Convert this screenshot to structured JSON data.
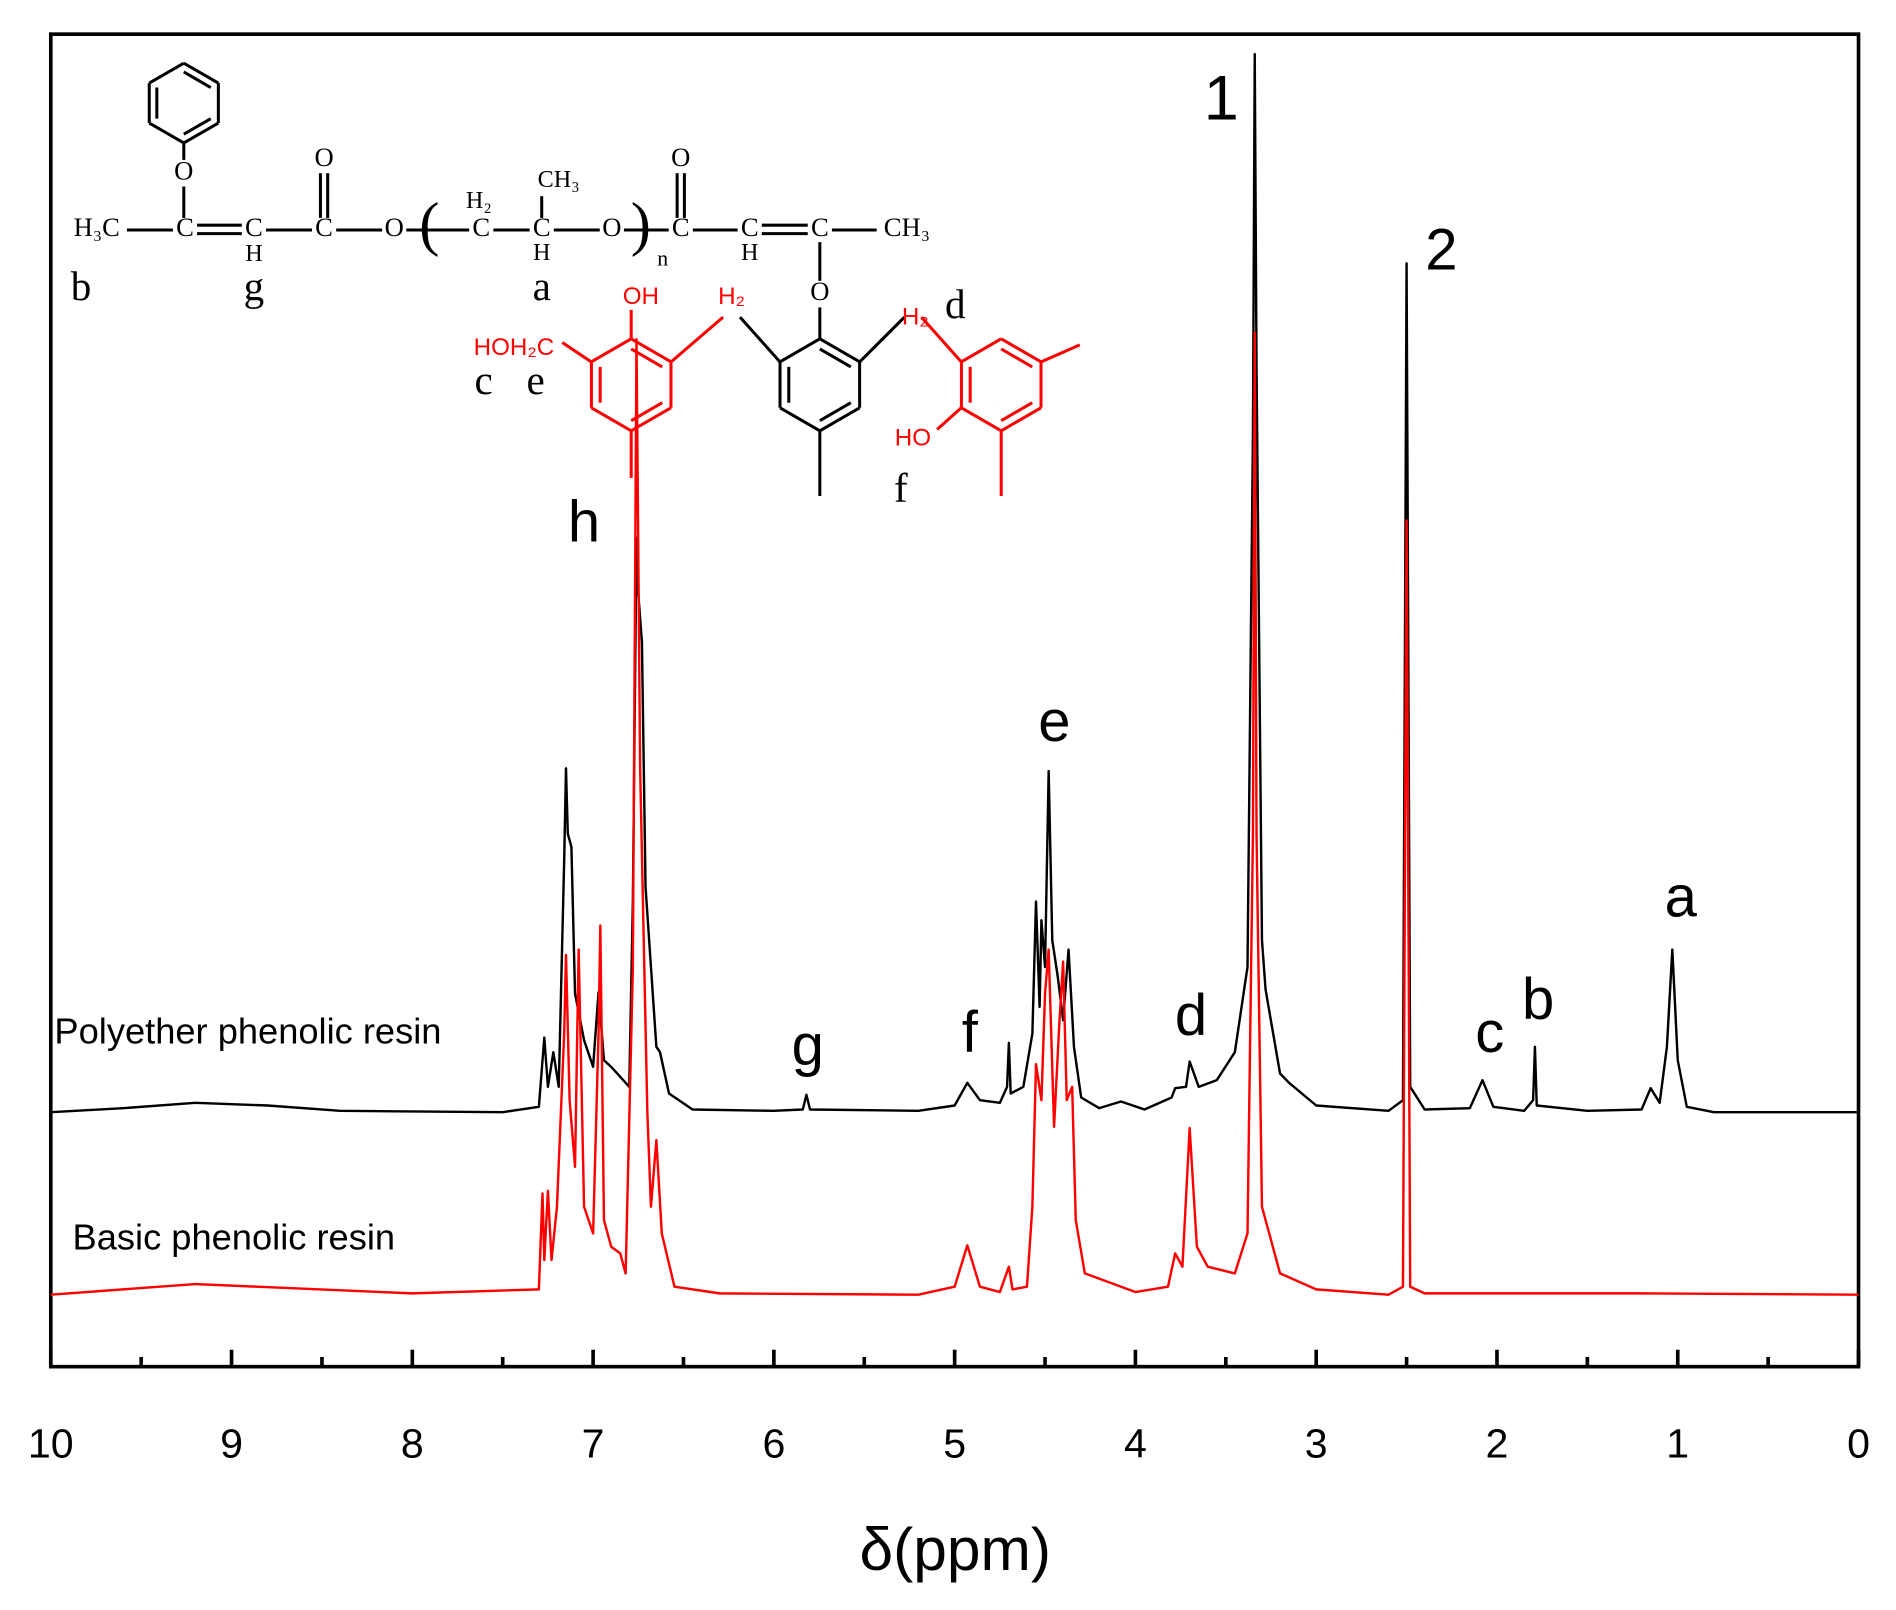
{
  "chart_data": {
    "type": "line",
    "x_label": "δ(ppm)",
    "xlim": [
      10,
      0
    ],
    "xticks": [
      10,
      9,
      8,
      7,
      6,
      5,
      4,
      3,
      2,
      1,
      0
    ],
    "xminorticks": [
      9.5,
      8.5,
      7.5,
      6.5,
      5.5,
      4.5,
      3.5,
      2.5,
      1.5,
      0.5
    ],
    "ylim": [
      0,
      100
    ],
    "series": [
      {
        "name": "Polyether phenolic resin",
        "color": "#000000",
        "x": [
          10,
          9.6,
          9.2,
          8.8,
          8.4,
          7.5,
          7.3,
          7.27,
          7.25,
          7.22,
          7.19,
          7.16,
          7.15,
          7.14,
          7.12,
          7.1,
          7.05,
          7.0,
          6.97,
          6.94,
          6.9,
          6.8,
          6.78,
          6.76,
          6.75,
          6.73,
          6.71,
          6.68,
          6.65,
          6.63,
          6.58,
          6.45,
          6.0,
          5.84,
          5.82,
          5.8,
          5.2,
          5.0,
          4.93,
          4.86,
          4.75,
          4.71,
          4.7,
          4.69,
          4.62,
          4.57,
          4.55,
          4.53,
          4.52,
          4.5,
          4.48,
          4.46,
          4.43,
          4.4,
          4.37,
          4.34,
          4.3,
          4.2,
          4.08,
          3.95,
          3.8,
          3.78,
          3.72,
          3.7,
          3.65,
          3.55,
          3.45,
          3.38,
          3.35,
          3.34,
          3.33,
          3.3,
          3.28,
          3.2,
          3.15,
          3.0,
          2.6,
          2.52,
          2.5,
          2.48,
          2.4,
          2.15,
          2.08,
          2.02,
          1.85,
          1.8,
          1.79,
          1.78,
          1.5,
          1.2,
          1.15,
          1.1,
          1.06,
          1.03,
          1.0,
          0.95,
          0.8,
          0
        ],
        "values": [
          19.1,
          19.4,
          19.8,
          19.6,
          19.2,
          19.1,
          19.5,
          24.7,
          21,
          23.6,
          21,
          38,
          44.9,
          40,
          39,
          28,
          24.5,
          22.5,
          28.1,
          23,
          22.5,
          21,
          35,
          62.2,
          58,
          54.4,
          36,
          30,
          24,
          23.6,
          20.5,
          19.3,
          19.2,
          19.3,
          20.4,
          19.3,
          19.2,
          19.6,
          21.3,
          20,
          19.8,
          21,
          24.3,
          20.5,
          21,
          25,
          34.9,
          27,
          33.5,
          30,
          44.7,
          32,
          29.3,
          26,
          31.3,
          24,
          20.2,
          19.4,
          19.9,
          19.3,
          20.2,
          20.9,
          21,
          22.9,
          21,
          21.5,
          23.6,
          30,
          70,
          98.5,
          75,
          32,
          28.3,
          22,
          21.3,
          19.6,
          19.2,
          20,
          82.8,
          21,
          19.3,
          19.4,
          21.5,
          19.5,
          19.2,
          20,
          24,
          19.6,
          19.2,
          19.3,
          20.9,
          19.8,
          24,
          31.3,
          23,
          19.5,
          19.1,
          19.1
        ]
      },
      {
        "name": "Basic phenolic resin",
        "color": "#ff0000",
        "x": [
          10,
          9.2,
          8,
          7.3,
          7.28,
          7.27,
          7.25,
          7.23,
          7.2,
          7.16,
          7.15,
          7.13,
          7.1,
          7.08,
          7.05,
          7.0,
          6.97,
          6.96,
          6.94,
          6.9,
          6.85,
          6.82,
          6.78,
          6.76,
          6.74,
          6.7,
          6.68,
          6.65,
          6.62,
          6.55,
          6.3,
          5.2,
          5.0,
          4.93,
          4.86,
          4.75,
          4.7,
          4.68,
          4.6,
          4.57,
          4.55,
          4.52,
          4.5,
          4.48,
          4.45,
          4.42,
          4.4,
          4.38,
          4.35,
          4.33,
          4.28,
          4.0,
          3.82,
          3.78,
          3.74,
          3.7,
          3.66,
          3.6,
          3.45,
          3.38,
          3.35,
          3.34,
          3.33,
          3.3,
          3.2,
          3.0,
          2.6,
          2.52,
          2.5,
          2.48,
          2.4,
          1.2,
          0
        ],
        "values": [
          5.4,
          6.2,
          5.5,
          5.8,
          13,
          8,
          13.2,
          8,
          12,
          25,
          30.9,
          20,
          15,
          31.3,
          12,
          10,
          25,
          33.1,
          11,
          9,
          8.5,
          7,
          30,
          77.1,
          45,
          19.1,
          12,
          17,
          10,
          6,
          5.5,
          5.4,
          6,
          9.1,
          6,
          5.6,
          7.5,
          5.8,
          6,
          12,
          22.7,
          20,
          28,
          31.3,
          18,
          26,
          30.4,
          20,
          21,
          11,
          7,
          5.6,
          6,
          8.5,
          7.5,
          17.9,
          9,
          7.5,
          7,
          10,
          40,
          77.6,
          40,
          12,
          7,
          5.8,
          5.4,
          6,
          63.5,
          6,
          5.5,
          5.5,
          5.4
        ]
      }
    ],
    "annotations": [
      "1",
      "2",
      "h",
      "e",
      "a",
      "b",
      "c",
      "d",
      "f",
      "g"
    ],
    "structure": {
      "atoms": [
        "H₃C",
        "C",
        "C",
        "H",
        "C",
        "O",
        "O",
        "C",
        "H₂",
        "C",
        "H",
        "CH₃",
        "O",
        "n",
        "C",
        "O",
        "C",
        "H",
        "C",
        "CH₃",
        "O",
        "O",
        "(",
        ")"
      ],
      "red_atoms": [
        "OH",
        "HOH₂C",
        "H₂",
        "H₂",
        "HO"
      ],
      "letters": [
        "b",
        "g",
        "a",
        "d",
        "c",
        "e",
        "f"
      ]
    }
  }
}
